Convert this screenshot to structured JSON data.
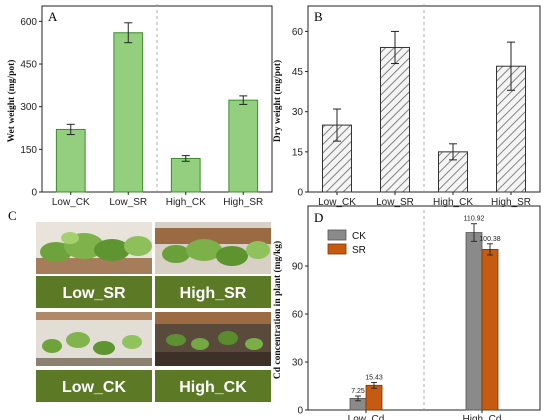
{
  "panels": {
    "a": "A",
    "b": "B",
    "c": "C",
    "d": "D"
  },
  "photos": {
    "labels": [
      "Low_SR",
      "High_SR",
      "Low_CK",
      "High_CK"
    ]
  },
  "colors": {
    "green_bar": "#93cf7f",
    "green_edge": "#3c8c2c",
    "gray_bar": "#8a8a8a",
    "orange_bar": "#c55a11",
    "photo_label_bg": "#5c7a25"
  },
  "chart_data": [
    {
      "id": "A",
      "type": "bar",
      "categories": [
        "Low_CK",
        "Low_SR",
        "High_CK",
        "High_SR"
      ],
      "values": [
        220,
        560,
        118,
        323
      ],
      "errors": [
        18,
        35,
        10,
        15
      ],
      "xlabel": "",
      "ylabel": "Wet weight (mg/pot)",
      "ylim": [
        0,
        640
      ],
      "yticks": [
        0,
        150,
        300,
        450,
        600
      ],
      "divider_after_index": 1,
      "style": "solid-green"
    },
    {
      "id": "B",
      "type": "bar",
      "categories": [
        "Low_CK",
        "Low_SR",
        "High_CK",
        "High_SR"
      ],
      "values": [
        25,
        54,
        15,
        47
      ],
      "errors": [
        6,
        6,
        3,
        9
      ],
      "xlabel": "",
      "ylabel": "Dry weight (mg/pot)",
      "ylim": [
        0,
        68
      ],
      "yticks": [
        0,
        15,
        30,
        45,
        60
      ],
      "divider_after_index": 1,
      "style": "hatched-gray"
    },
    {
      "id": "D",
      "type": "bar",
      "categories": [
        "Low_Cd",
        "High_Cd"
      ],
      "series": [
        {
          "name": "CK",
          "values": [
            7.25,
            110.92
          ],
          "errors": [
            1.5,
            5.5
          ],
          "labels": [
            "7.25",
            "110.92"
          ]
        },
        {
          "name": "SR",
          "values": [
            15.43,
            100.38
          ],
          "errors": [
            1.8,
            3.5
          ],
          "labels": [
            "15.43",
            "100.38"
          ]
        }
      ],
      "xlabel": "",
      "ylabel": "Cd concentration in plant (mg/kg)",
      "ylim": [
        0,
        125
      ],
      "yticks": [
        0,
        30,
        60,
        90
      ],
      "legend": "top-left",
      "divider_after_index": 0
    }
  ]
}
